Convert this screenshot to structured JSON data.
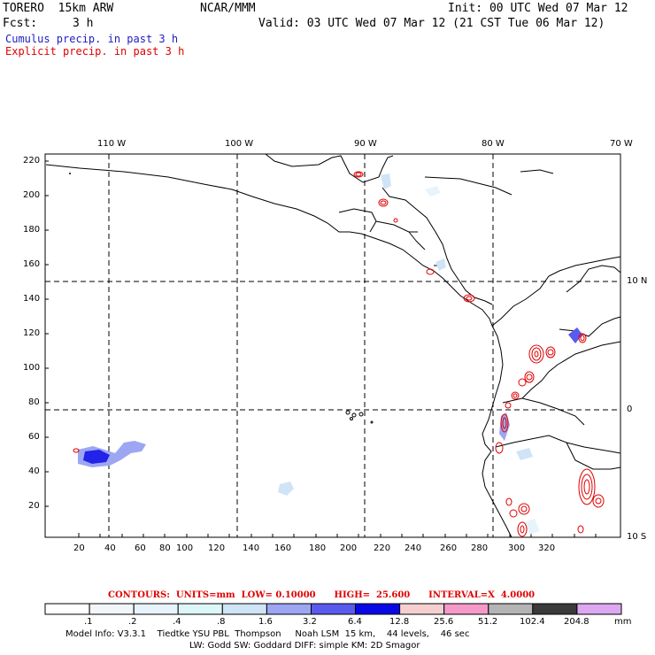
{
  "header": {
    "model": "TORERO  15km ARW",
    "org": "NCAR/MMM",
    "init": "Init: 00 UTC Wed 07 Mar 12",
    "fcst_label": "Fcst:",
    "fcst_value": "3 h",
    "valid": "Valid: 03 UTC Wed 07 Mar 12 (21 CST Tue 06 Mar 12)",
    "line_cumulus": "Cumulus precip. in past 3 h",
    "line_explicit": "Explicit precip. in past 3 h",
    "color_cumulus": "#2020c0",
    "color_explicit": "#e00000"
  },
  "map": {
    "lon_labels": [
      "110 W",
      "100 W",
      "90 W",
      "80 W",
      "70 W"
    ],
    "lat_labels": [
      "10 N",
      "0",
      "10 S"
    ],
    "y_grid_ticks": [
      "220",
      "200",
      "180",
      "160",
      "140",
      "120",
      "100",
      "80",
      "60",
      "40",
      "20"
    ],
    "x_grid_ticks": [
      "20",
      "40",
      "60",
      "80",
      "100",
      "120",
      "140",
      "160",
      "180",
      "200",
      "220",
      "240",
      "260",
      "280",
      "300",
      "320"
    ]
  },
  "contours": {
    "label": "CONTOURS:  UNITS=mm  LOW= 0.10000      HIGH=  25.600      INTERVAL=X  4.0000"
  },
  "colorbar": {
    "labels": [
      ".1",
      ".2",
      ".4",
      ".8",
      "1.6",
      "3.2",
      "6.4",
      "12.8",
      "25.6",
      "51.2",
      "102.4",
      "204.8"
    ],
    "unit": "mm",
    "colors": [
      "#ffffff",
      "#f2f6fb",
      "#e8f4fb",
      "#ddf6f8",
      "#cfe4f6",
      "#9da6f2",
      "#5a5aee",
      "#0808e6",
      "#f5cfcf",
      "#f59ac8",
      "#b4b4b4",
      "#3a3a3a",
      "#dca8f2"
    ]
  },
  "footer": {
    "line1": "Model Info: V3.3.1    Tiedtke YSU PBL  Thompson     Noah LSM  15 km,    44 levels,    46 sec",
    "line2": "LW: Godd SW: Goddard DIFF: simple KM: 2D Smagor"
  }
}
